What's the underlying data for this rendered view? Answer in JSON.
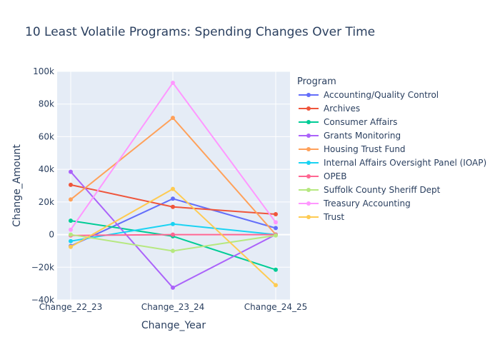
{
  "chart_data": {
    "type": "line",
    "title": "10 Least Volatile Programs: Spending Changes Over Time",
    "xlabel": "Change_Year",
    "ylabel": "Change_Amount",
    "legend_title": "Program",
    "legend_position": "right",
    "grid": true,
    "categories": [
      "Change_22_23",
      "Change_23_24",
      "Change_24_25"
    ],
    "ylim": [
      -40000,
      100000
    ],
    "yticks": [
      -40000,
      -20000,
      0,
      20000,
      40000,
      60000,
      80000,
      100000
    ],
    "ytick_labels": [
      "−40k",
      "−20k",
      "0",
      "20k",
      "40k",
      "60k",
      "80k",
      "100k"
    ],
    "series": [
      {
        "name": "Accounting/Quality Control",
        "color": "#636efa",
        "values": [
          -7000,
          22000,
          4000
        ]
      },
      {
        "name": "Archives",
        "color": "#ef553b",
        "values": [
          30500,
          17000,
          12500
        ]
      },
      {
        "name": "Consumer Affairs",
        "color": "#00cc96",
        "values": [
          8500,
          -1000,
          -21500
        ]
      },
      {
        "name": "Grants Monitoring",
        "color": "#ab63fa",
        "values": [
          38500,
          -32500,
          0
        ]
      },
      {
        "name": "Housing Trust Fund",
        "color": "#ffa15a",
        "values": [
          21500,
          71500,
          0
        ]
      },
      {
        "name": "Internal Affairs Oversight Panel (IOAP)",
        "color": "#19d3f3",
        "values": [
          -4000,
          6500,
          0
        ]
      },
      {
        "name": "OPEB",
        "color": "#ff6692",
        "values": [
          -500,
          0,
          0
        ]
      },
      {
        "name": "Suffolk County Sheriff Dept",
        "color": "#b6e880",
        "values": [
          0,
          -10000,
          -500
        ]
      },
      {
        "name": "Treasury Accounting",
        "color": "#ff97ff",
        "values": [
          3000,
          93000,
          7500
        ]
      },
      {
        "name": "Trust",
        "color": "#fecb52",
        "values": [
          -7500,
          28000,
          -31000
        ]
      }
    ]
  }
}
